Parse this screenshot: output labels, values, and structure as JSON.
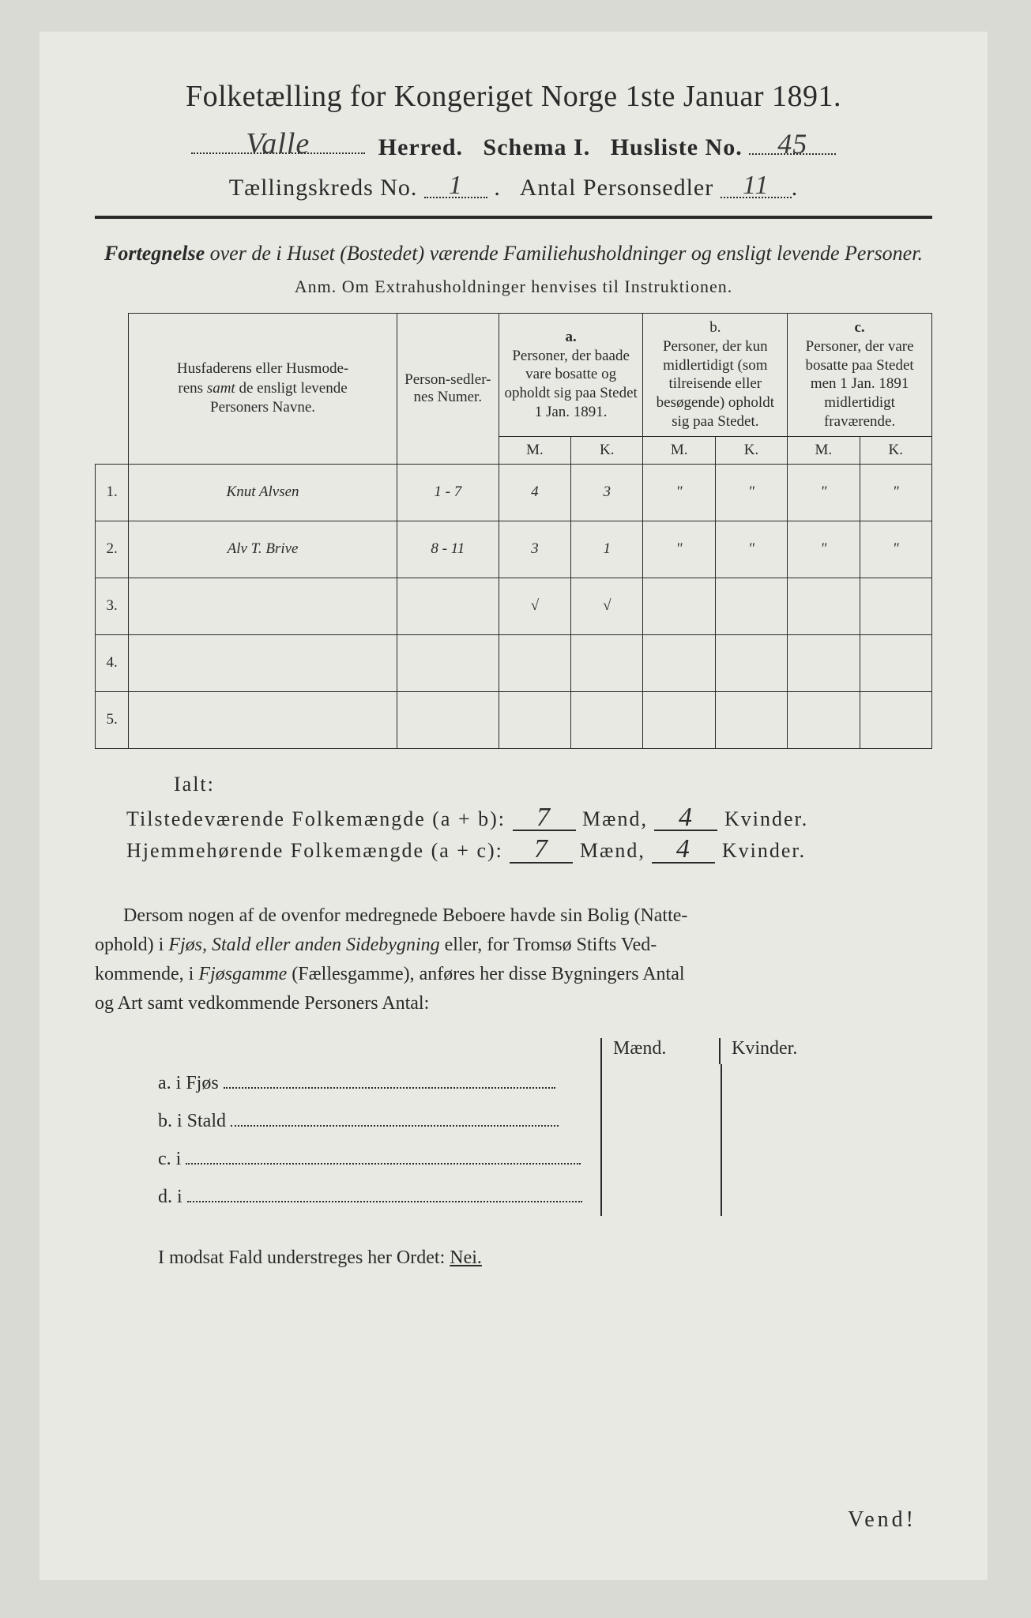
{
  "title": "Folketælling for Kongeriget Norge 1ste Januar 1891.",
  "line2": {
    "herred_value": "Valle",
    "herred_label": "Herred.",
    "schema_label": "Schema I.",
    "husliste_label": "Husliste No.",
    "husliste_value": "45"
  },
  "line3": {
    "kreds_label": "Tællingskreds No.",
    "kreds_value": "1",
    "antal_label": "Antal Personsedler",
    "antal_value": "11"
  },
  "subtitle": "Fortegnelse over de i Huset (Bostedet) værende Familiehusholdninger og ensligt levende Personer.",
  "anm": "Anm.  Om Extrahusholdninger henvises til Instruktionen.",
  "table": {
    "col_names": "Husfaderens eller Husmoderens samt de ensligt levende Personers Navne.",
    "col_numer": "Person-sedler-nes Numer.",
    "col_a_label": "a.",
    "col_a": "Personer, der baade vare bosatte og opholdt sig paa Stedet 1 Jan. 1891.",
    "col_b_label": "b.",
    "col_b": "Personer, der kun midlertidigt (som tilreisende eller besøgende) opholdt sig paa Stedet.",
    "col_c_label": "c.",
    "col_c": "Personer, der vare bosatte paa Stedet men 1 Jan. 1891 midlertidigt fraværende.",
    "m": "M.",
    "k": "K.",
    "rows": [
      {
        "n": "1.",
        "name": "Knut Alvsen",
        "numer": "1 - 7",
        "am": "4",
        "ak": "3",
        "bm": "\"",
        "bk": "\"",
        "cm": "\"",
        "ck": "\""
      },
      {
        "n": "2.",
        "name": "Alv T. Brive",
        "numer": "8 - 11",
        "am": "3",
        "ak": "1",
        "bm": "\"",
        "bk": "\"",
        "cm": "\"",
        "ck": "\""
      },
      {
        "n": "3.",
        "name": "",
        "numer": "",
        "am": "√",
        "ak": "√",
        "bm": "",
        "bk": "",
        "cm": "",
        "ck": ""
      },
      {
        "n": "4.",
        "name": "",
        "numer": "",
        "am": "",
        "ak": "",
        "bm": "",
        "bk": "",
        "cm": "",
        "ck": ""
      },
      {
        "n": "5.",
        "name": "",
        "numer": "",
        "am": "",
        "ak": "",
        "bm": "",
        "bk": "",
        "cm": "",
        "ck": ""
      }
    ]
  },
  "ialt": "Ialt:",
  "sum": {
    "line1_label": "Tilstedeværende Folkemængde (a + b):",
    "line2_label": "Hjemmehørende Folkemængde (a + c):",
    "maend": "Mænd,",
    "kvinder": "Kvinder.",
    "v1m": "7",
    "v1k": "4",
    "v2m": "7",
    "v2k": "4"
  },
  "para": "Dersom nogen af de ovenfor medregnede Beboere havde sin Bolig (Natteophold) i Fjøs, Stald eller anden Sidebygning eller, for Tromsø Stifts Vedkommende, i Fjøsgamme (Fællesgamme), anføres her disse Bygningers Antal og Art samt vedkommende Personers Antal:",
  "mk": {
    "maend": "Mænd.",
    "kvinder": "Kvinder."
  },
  "ab": {
    "a": "a.  i      Fjøs",
    "b": "b.  i      Stald",
    "c": "c.  i",
    "d": "d.  i"
  },
  "nei_pre": "I modsat Fald understreges her Ordet: ",
  "nei": "Nei.",
  "vend": "Vend!",
  "colors": {
    "page_bg": "#e8e9e3",
    "body_bg": "#d9dad4",
    "ink": "#2a2a2a"
  }
}
